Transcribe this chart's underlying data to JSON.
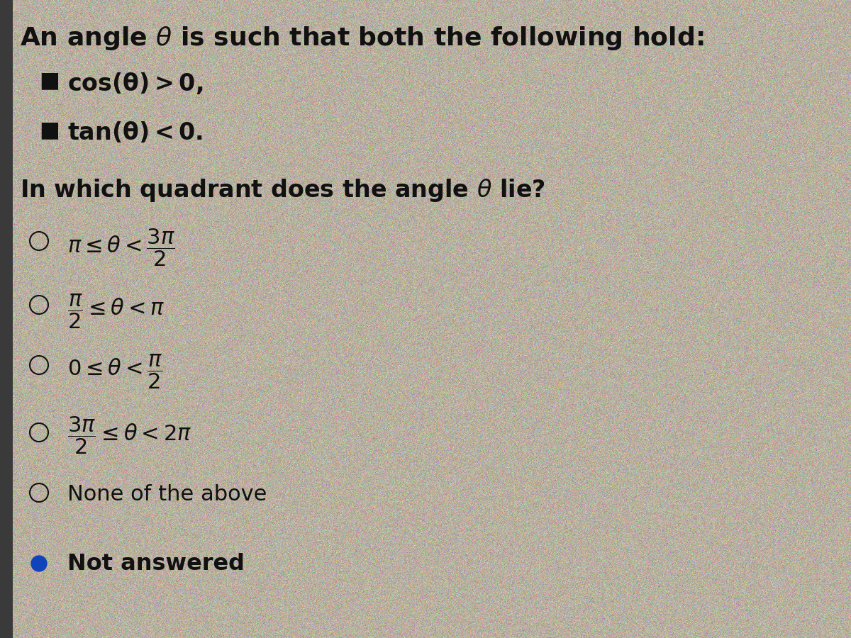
{
  "background_color": "#b8b0a0",
  "text_color": "#111111",
  "title": "An angle $\\theta$ is such that both the following hold:",
  "bullet1": "$\\mathbf{cos(\\theta) > 0,}$",
  "bullet2": "$\\mathbf{tan(\\theta) < 0.}$",
  "question": "In which quadrant does the angle $\\theta$ lie?",
  "options": [
    "$\\pi \\leq \\theta < \\dfrac{3\\pi}{2}$",
    "$\\dfrac{\\pi}{2} \\leq \\theta < \\pi$",
    "$0 \\leq \\theta < \\dfrac{\\pi}{2}$",
    "$\\dfrac{3\\pi}{2} \\leq \\theta < 2\\pi$",
    "None of the above"
  ],
  "not_answered": "Not answered",
  "left_bar_color": "#3a3a3a",
  "not_answered_dot_color": "#1144bb",
  "figsize": [
    12,
    9
  ],
  "dpi": 100,
  "noise_seed": 42,
  "noise_alpha": 0.18
}
